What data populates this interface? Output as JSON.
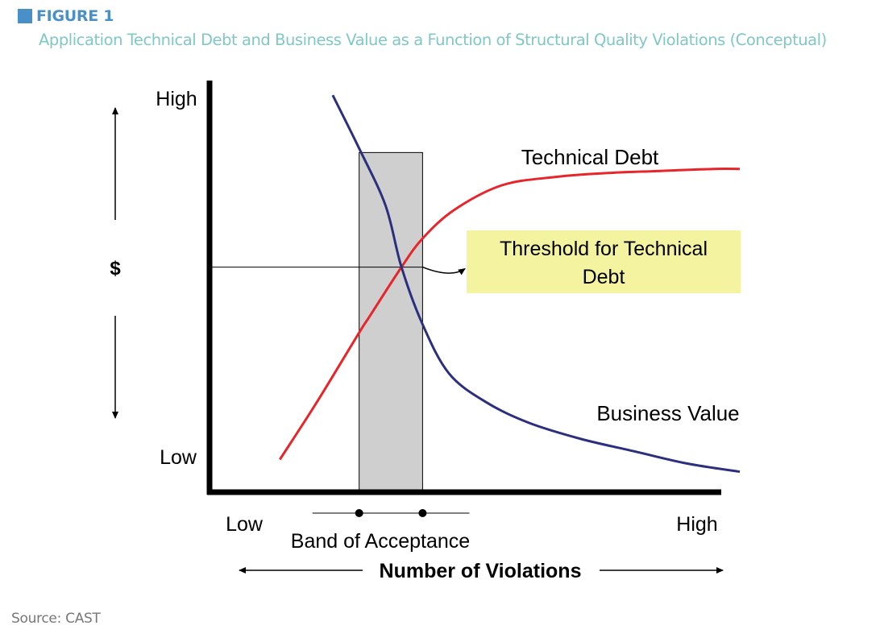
{
  "figure": {
    "label": "FIGURE 1",
    "caption": "Application Technical Debt and Business Value as a Function of Structural Quality Violations (Conceptual)",
    "source": "Source: CAST"
  },
  "colors": {
    "accent": "#4a90c8",
    "caption": "#7fc8c6",
    "technical_debt": "#e8252a",
    "business_value": "#2b2f7e",
    "band_fill": "#cfcfcf",
    "threshold_box": "#f4f4a0"
  },
  "chart_data": {
    "type": "line",
    "conceptual": true,
    "title": "",
    "y_axis": {
      "label": "$",
      "high_label": "High",
      "low_label": "Low"
    },
    "x_axis": {
      "label": "Number of Violations",
      "low_label": "Low",
      "high_label": "High"
    },
    "x_range": [
      0,
      1
    ],
    "y_range": [
      0,
      1
    ],
    "series": [
      {
        "name": "Technical Debt",
        "x": [
          0.13,
          0.2,
          0.28,
          0.3,
          0.36,
          0.4,
          0.46,
          0.55,
          0.65,
          0.75,
          0.85,
          0.95,
          1.0
        ],
        "y": [
          0.08,
          0.22,
          0.39,
          0.43,
          0.55,
          0.62,
          0.69,
          0.75,
          0.77,
          0.78,
          0.785,
          0.79,
          0.79
        ]
      },
      {
        "name": "Business Value",
        "x": [
          0.23,
          0.28,
          0.33,
          0.36,
          0.4,
          0.45,
          0.52,
          0.6,
          0.7,
          0.8,
          0.9,
          1.0
        ],
        "y": [
          0.97,
          0.84,
          0.7,
          0.55,
          0.41,
          0.29,
          0.22,
          0.17,
          0.13,
          0.1,
          0.07,
          0.05
        ]
      }
    ],
    "band_of_acceptance": {
      "label": "Band of Acceptance",
      "x_start": 0.28,
      "x_end": 0.4,
      "y_top": 0.83
    },
    "threshold": {
      "label_line1": "Threshold for Technical",
      "label_line2": "Debt",
      "x": 0.4,
      "y": 0.55
    }
  }
}
